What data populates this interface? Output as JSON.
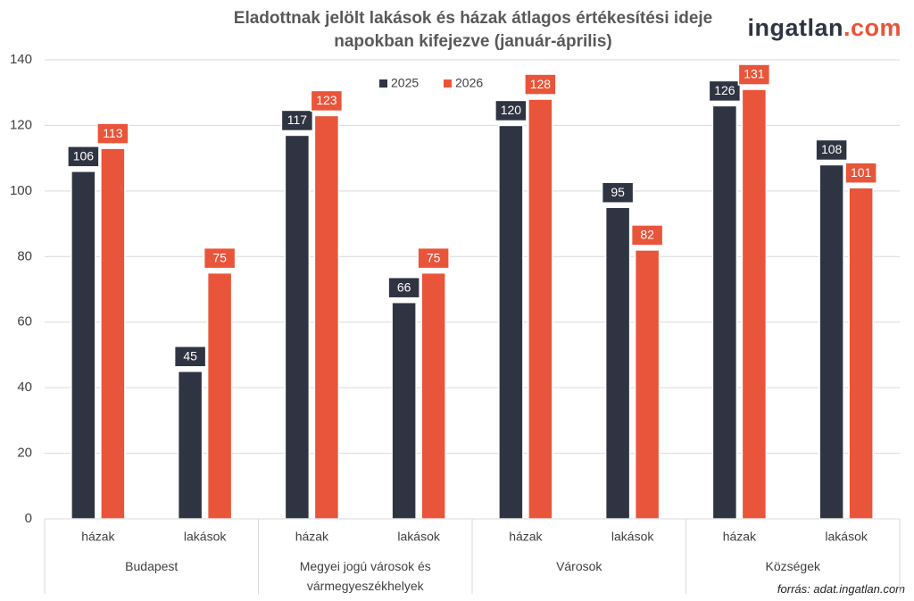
{
  "chart_data": {
    "type": "bar",
    "title": "Eladottnak jelölt lakások és házak átlagos értékesítési ideje napokban kifejezve (január-április)",
    "logo": {
      "name": "ingatlan",
      "suffix": ".com"
    },
    "source": "forrás: adat.ingatlan.com",
    "groups": [
      {
        "name": "Budapest",
        "categories": [
          "házak",
          "lakások"
        ]
      },
      {
        "name": "Megyei jogú városok és vármegyeszékhelyek",
        "categories": [
          "házak",
          "lakások"
        ]
      },
      {
        "name": "Városok",
        "categories": [
          "házak",
          "lakások"
        ]
      },
      {
        "name": "Községek",
        "categories": [
          "házak",
          "lakások"
        ]
      }
    ],
    "series": [
      {
        "name": "2025",
        "color": "#2f3442",
        "values": [
          106,
          45,
          117,
          66,
          120,
          95,
          126,
          108
        ]
      },
      {
        "name": "2026",
        "color": "#e9553a",
        "values": [
          113,
          75,
          123,
          75,
          128,
          82,
          131,
          101
        ]
      }
    ],
    "ylim": [
      0,
      140
    ],
    "yticks": [
      0,
      20,
      40,
      60,
      80,
      100,
      120,
      140
    ],
    "grid": true
  }
}
